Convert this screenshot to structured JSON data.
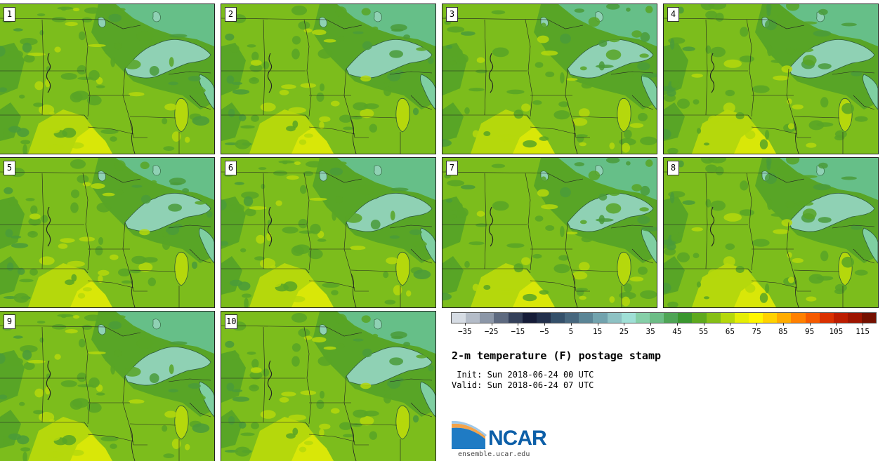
{
  "panels": [
    {
      "member": "1",
      "variant": 0
    },
    {
      "member": "2",
      "variant": 1
    },
    {
      "member": "3",
      "variant": 2
    },
    {
      "member": "4",
      "variant": 3
    },
    {
      "member": "5",
      "variant": 1
    },
    {
      "member": "6",
      "variant": 0
    },
    {
      "member": "7",
      "variant": 2
    },
    {
      "member": "8",
      "variant": 3
    },
    {
      "member": "9",
      "variant": 0
    },
    {
      "member": "10",
      "variant": 1
    }
  ],
  "colorbar": {
    "colors": [
      "#d6dce4",
      "#b4bcc8",
      "#8c97a8",
      "#5e6a80",
      "#34405a",
      "#151c38",
      "#22304c",
      "#34506a",
      "#47677e",
      "#5b8596",
      "#72a3ae",
      "#8ec2c4",
      "#9fdfd6",
      "#86cfa8",
      "#6dbd86",
      "#4fa556",
      "#3a962e",
      "#5ea91e",
      "#86bf16",
      "#b5d80c",
      "#e5ee06",
      "#fff600",
      "#ffd200",
      "#ffac00",
      "#ff8000",
      "#f55a00",
      "#da3000",
      "#bc1c00",
      "#9e1400",
      "#741000"
    ],
    "tick_labels": [
      "−35",
      "−25",
      "−15",
      "−5",
      "5",
      "15",
      "25",
      "35",
      "45",
      "55",
      "65",
      "75",
      "85",
      "95",
      "105",
      "115"
    ],
    "min": -40,
    "max": 120,
    "tick_values": [
      -35,
      -25,
      -15,
      -5,
      5,
      15,
      25,
      35,
      45,
      55,
      65,
      75,
      85,
      95,
      105,
      115
    ]
  },
  "title": "2-m temperature (F) postage stamp",
  "init": " Init: Sun 2018-06-24 00 UTC",
  "valid": "Valid: Sun 2018-06-24 07 UTC",
  "logo": {
    "word": "NCAR",
    "url": "ensemble.ucar.edu"
  },
  "map_colors": {
    "temp_60_65": "#7cbd1c",
    "temp_55_60": "#58a526",
    "temp_50_55": "#4a9b3a",
    "temp_45_50": "#66bf88",
    "temp_40_45": "#7fcfa2",
    "temp_65_70": "#b5d80c",
    "temp_70_75": "#d9e708",
    "lake": "#8fd1b4",
    "boundary": "#222222"
  }
}
